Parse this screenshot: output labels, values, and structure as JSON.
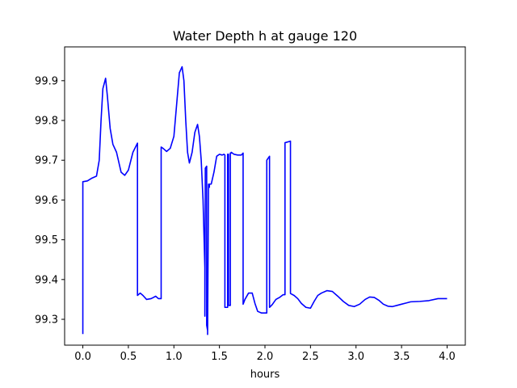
{
  "chart_data": {
    "type": "line",
    "title": "Water Depth h at gauge 120",
    "xlabel": "hours",
    "ylabel": "",
    "xlim": [
      -0.2,
      4.2
    ],
    "ylim": [
      99.235,
      99.985
    ],
    "xticks": [
      0.0,
      0.5,
      1.0,
      1.5,
      2.0,
      2.5,
      3.0,
      3.5,
      4.0
    ],
    "xtick_labels": [
      "0.0",
      "0.5",
      "1.0",
      "1.5",
      "2.0",
      "2.5",
      "3.0",
      "3.5",
      "4.0"
    ],
    "yticks": [
      99.3,
      99.4,
      99.5,
      99.6,
      99.7,
      99.8,
      99.9
    ],
    "ytick_labels": [
      "99.3",
      "99.4",
      "99.5",
      "99.6",
      "99.7",
      "99.8",
      "99.9"
    ],
    "grid": false,
    "series": [
      {
        "color": "#0000ff",
        "x": [
          0.0,
          0.0,
          0.05,
          0.1,
          0.15,
          0.18,
          0.2,
          0.22,
          0.25,
          0.27,
          0.3,
          0.33,
          0.37,
          0.42,
          0.46,
          0.5,
          0.55,
          0.6,
          0.6,
          0.63,
          0.66,
          0.7,
          0.75,
          0.8,
          0.83,
          0.86,
          0.86,
          0.88,
          0.92,
          0.96,
          1.0,
          1.03,
          1.06,
          1.09,
          1.11,
          1.13,
          1.15,
          1.17,
          1.2,
          1.23,
          1.26,
          1.28,
          1.3,
          1.32,
          1.34,
          1.34,
          1.345,
          1.36,
          1.36,
          1.37,
          1.37,
          1.38,
          1.39,
          1.39,
          1.41,
          1.44,
          1.47,
          1.5,
          1.53,
          1.55,
          1.56,
          1.56,
          1.59,
          1.59,
          1.6,
          1.6,
          1.62,
          1.62,
          1.63,
          1.63,
          1.66,
          1.7,
          1.74,
          1.76,
          1.76,
          1.78,
          1.82,
          1.86,
          1.89,
          1.92,
          1.96,
          2.0,
          2.02,
          2.02,
          2.05,
          2.05,
          2.08,
          2.12,
          2.16,
          2.2,
          2.22,
          2.22,
          2.28,
          2.28,
          2.32,
          2.36,
          2.4,
          2.45,
          2.5,
          2.54,
          2.58,
          2.62,
          2.68,
          2.74,
          2.8,
          2.86,
          2.92,
          2.98,
          3.04,
          3.1,
          3.15,
          3.2,
          3.25,
          3.3,
          3.35,
          3.4,
          3.45,
          3.5,
          3.55,
          3.6,
          3.7,
          3.8,
          3.9,
          4.0
        ],
        "y": [
          99.263,
          99.646,
          99.648,
          99.655,
          99.66,
          99.7,
          99.8,
          99.88,
          99.906,
          99.86,
          99.78,
          99.74,
          99.72,
          99.67,
          99.662,
          99.675,
          99.72,
          99.743,
          99.36,
          99.366,
          99.36,
          99.35,
          99.352,
          99.358,
          99.352,
          99.352,
          99.733,
          99.73,
          99.722,
          99.73,
          99.76,
          99.84,
          99.92,
          99.935,
          99.9,
          99.8,
          99.72,
          99.693,
          99.72,
          99.77,
          99.79,
          99.76,
          99.7,
          99.6,
          99.43,
          99.308,
          99.68,
          99.685,
          99.285,
          99.272,
          99.262,
          99.64,
          99.632,
          99.64,
          99.64,
          99.67,
          99.71,
          99.715,
          99.713,
          99.715,
          99.713,
          99.33,
          99.33,
          99.715,
          99.715,
          99.335,
          99.335,
          99.718,
          99.718,
          99.72,
          99.715,
          99.713,
          99.713,
          99.718,
          99.338,
          99.35,
          99.366,
          99.366,
          99.34,
          99.32,
          99.316,
          99.316,
          99.316,
          99.7,
          99.71,
          99.33,
          99.337,
          99.35,
          99.355,
          99.362,
          99.362,
          99.744,
          99.748,
          99.365,
          99.36,
          99.352,
          99.34,
          99.33,
          99.328,
          99.345,
          99.36,
          99.366,
          99.372,
          99.37,
          99.358,
          99.345,
          99.335,
          99.332,
          99.338,
          99.35,
          99.356,
          99.355,
          99.348,
          99.338,
          99.333,
          99.332,
          99.335,
          99.338,
          99.341,
          99.344,
          99.345,
          99.347,
          99.352,
          99.352
        ]
      }
    ]
  }
}
